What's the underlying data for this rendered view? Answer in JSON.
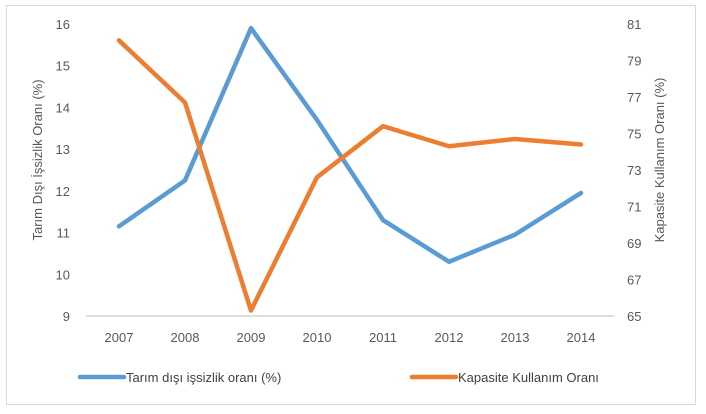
{
  "chart_data": {
    "type": "line",
    "categories": [
      "2007",
      "2008",
      "2009",
      "2010",
      "2011",
      "2012",
      "2013",
      "2014"
    ],
    "series": [
      {
        "name": "Tarım dışı işsizlik oranı (%)",
        "axis": "left",
        "color": "#5b9bd5",
        "values": [
          11.15,
          12.25,
          15.9,
          13.7,
          11.3,
          10.3,
          10.95,
          11.95
        ]
      },
      {
        "name": "Kapasite Kullanım Oranı",
        "axis": "right",
        "color": "#ed7d31",
        "values": [
          80.1,
          76.7,
          65.3,
          72.6,
          75.4,
          74.3,
          74.7,
          74.4
        ]
      }
    ],
    "y_left": {
      "label": "Tarım Dışı İşsizlik Oranı (%)",
      "min": 9,
      "max": 16,
      "ticks": [
        "9",
        "10",
        "11",
        "12",
        "13",
        "14",
        "15",
        "16"
      ]
    },
    "y_right": {
      "label": "Kapasite Kullanım Oranı (%)",
      "min": 65,
      "max": 81,
      "ticks": [
        "65",
        "67",
        "69",
        "71",
        "73",
        "75",
        "77",
        "79",
        "81"
      ]
    },
    "grid": false,
    "legend_position": "bottom"
  }
}
